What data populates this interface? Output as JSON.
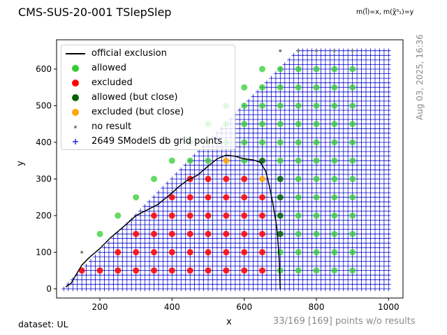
{
  "header": {
    "title": "CMS-SUS-20-001 TSlepSlep",
    "mass_note": "m(l̃)=x, m(χ̃⁰₁)=y",
    "timestamp": "Aug 03, 2025, 16:36"
  },
  "footer": {
    "dataset": "dataset: UL",
    "summary": "33/169 [169] points w/o results"
  },
  "colors": {
    "allowed": "#33cc33",
    "excluded": "#ff0000",
    "allowed_close": "#006400",
    "excluded_close": "#ffa500",
    "no_result": "#808080",
    "grid_points": "#0000cc",
    "exclusion_line": "#000000"
  },
  "chart_data": {
    "type": "scatter",
    "xlabel": "x",
    "ylabel": "y",
    "xlim": [
      80,
      1040
    ],
    "ylim": [
      -25,
      680
    ],
    "xticks": [
      200,
      400,
      600,
      800,
      1000
    ],
    "yticks": [
      0,
      100,
      200,
      300,
      400,
      500,
      600
    ],
    "grid": false,
    "legend_position": "upper-left",
    "legend": [
      {
        "key": "exclusion",
        "label": "official exclusion"
      },
      {
        "key": "allowed",
        "label": "allowed"
      },
      {
        "key": "excluded",
        "label": "excluded"
      },
      {
        "key": "allowed_close",
        "label": "allowed (but close)"
      },
      {
        "key": "excluded_close",
        "label": "excluded (but close)"
      },
      {
        "key": "no_result",
        "label": "no result"
      },
      {
        "key": "grid_points",
        "label": "2649 SModelS db grid points"
      }
    ],
    "grid_points": {
      "count": 2649,
      "x_min": 100,
      "x_max": 1000,
      "y_min": 0,
      "y_max": 650,
      "step": 12.5,
      "diagonal_offset": 100
    },
    "points": {
      "excluded": [
        [
          150,
          50
        ],
        [
          200,
          50
        ],
        [
          250,
          50
        ],
        [
          300,
          50
        ],
        [
          350,
          50
        ],
        [
          400,
          50
        ],
        [
          450,
          50
        ],
        [
          500,
          50
        ],
        [
          550,
          50
        ],
        [
          600,
          50
        ],
        [
          650,
          50
        ],
        [
          250,
          100
        ],
        [
          300,
          100
        ],
        [
          350,
          100
        ],
        [
          400,
          100
        ],
        [
          450,
          100
        ],
        [
          500,
          100
        ],
        [
          550,
          100
        ],
        [
          600,
          100
        ],
        [
          650,
          100
        ],
        [
          300,
          150
        ],
        [
          350,
          150
        ],
        [
          400,
          150
        ],
        [
          450,
          150
        ],
        [
          500,
          150
        ],
        [
          550,
          150
        ],
        [
          600,
          150
        ],
        [
          650,
          150
        ],
        [
          350,
          200
        ],
        [
          400,
          200
        ],
        [
          450,
          200
        ],
        [
          500,
          200
        ],
        [
          550,
          200
        ],
        [
          600,
          200
        ],
        [
          650,
          200
        ],
        [
          400,
          250
        ],
        [
          450,
          250
        ],
        [
          500,
          250
        ],
        [
          550,
          250
        ],
        [
          600,
          250
        ],
        [
          650,
          250
        ],
        [
          450,
          300
        ],
        [
          500,
          300
        ],
        [
          550,
          300
        ],
        [
          600,
          300
        ]
      ],
      "excluded_close": [
        [
          550,
          350
        ],
        [
          650,
          300
        ]
      ],
      "allowed_close": [
        [
          650,
          350
        ],
        [
          700,
          150
        ],
        [
          700,
          200
        ],
        [
          700,
          250
        ],
        [
          700,
          300
        ]
      ],
      "allowed": [
        [
          200,
          150
        ],
        [
          250,
          200
        ],
        [
          300,
          250
        ],
        [
          350,
          300
        ],
        [
          400,
          350
        ],
        [
          450,
          400
        ],
        [
          500,
          450
        ],
        [
          550,
          500
        ],
        [
          600,
          550
        ],
        [
          650,
          600
        ],
        [
          450,
          350
        ],
        [
          500,
          350
        ],
        [
          500,
          400
        ],
        [
          550,
          400
        ],
        [
          550,
          450
        ],
        [
          600,
          350
        ],
        [
          600,
          400
        ],
        [
          600,
          450
        ],
        [
          600,
          500
        ],
        [
          650,
          400
        ],
        [
          650,
          450
        ],
        [
          650,
          500
        ],
        [
          650,
          550
        ],
        [
          700,
          50
        ],
        [
          700,
          100
        ],
        [
          700,
          350
        ],
        [
          700,
          400
        ],
        [
          700,
          450
        ],
        [
          700,
          500
        ],
        [
          700,
          550
        ],
        [
          700,
          600
        ],
        [
          750,
          50
        ],
        [
          750,
          100
        ],
        [
          750,
          150
        ],
        [
          750,
          200
        ],
        [
          750,
          250
        ],
        [
          750,
          300
        ],
        [
          750,
          350
        ],
        [
          750,
          400
        ],
        [
          750,
          450
        ],
        [
          750,
          500
        ],
        [
          750,
          550
        ],
        [
          750,
          600
        ],
        [
          800,
          50
        ],
        [
          800,
          100
        ],
        [
          800,
          150
        ],
        [
          800,
          200
        ],
        [
          800,
          250
        ],
        [
          800,
          300
        ],
        [
          800,
          350
        ],
        [
          800,
          400
        ],
        [
          800,
          450
        ],
        [
          800,
          500
        ],
        [
          800,
          550
        ],
        [
          800,
          600
        ],
        [
          850,
          50
        ],
        [
          850,
          100
        ],
        [
          850,
          150
        ],
        [
          850,
          200
        ],
        [
          850,
          250
        ],
        [
          850,
          300
        ],
        [
          850,
          350
        ],
        [
          850,
          400
        ],
        [
          850,
          450
        ],
        [
          850,
          500
        ],
        [
          850,
          550
        ],
        [
          850,
          600
        ],
        [
          900,
          50
        ],
        [
          900,
          100
        ],
        [
          900,
          150
        ],
        [
          900,
          200
        ],
        [
          900,
          250
        ],
        [
          900,
          300
        ],
        [
          900,
          350
        ],
        [
          900,
          400
        ],
        [
          900,
          450
        ],
        [
          900,
          500
        ],
        [
          900,
          550
        ],
        [
          900,
          600
        ]
      ],
      "no_result": [
        [
          150,
          100
        ],
        [
          700,
          650
        ],
        [
          750,
          650
        ],
        [
          800,
          650
        ],
        [
          850,
          650
        ],
        [
          900,
          650
        ]
      ]
    },
    "official_exclusion": [
      [
        105,
        5
      ],
      [
        120,
        15
      ],
      [
        135,
        40
      ],
      [
        150,
        65
      ],
      [
        170,
        85
      ],
      [
        200,
        110
      ],
      [
        230,
        140
      ],
      [
        260,
        165
      ],
      [
        300,
        200
      ],
      [
        330,
        215
      ],
      [
        360,
        230
      ],
      [
        400,
        262
      ],
      [
        420,
        280
      ],
      [
        440,
        295
      ],
      [
        470,
        310
      ],
      [
        500,
        335
      ],
      [
        525,
        355
      ],
      [
        550,
        365
      ],
      [
        575,
        362
      ],
      [
        600,
        355
      ],
      [
        625,
        352
      ],
      [
        645,
        345
      ],
      [
        660,
        320
      ],
      [
        670,
        280
      ],
      [
        680,
        230
      ],
      [
        690,
        170
      ],
      [
        695,
        110
      ],
      [
        698,
        60
      ],
      [
        699,
        20
      ],
      [
        700,
        0
      ]
    ]
  }
}
